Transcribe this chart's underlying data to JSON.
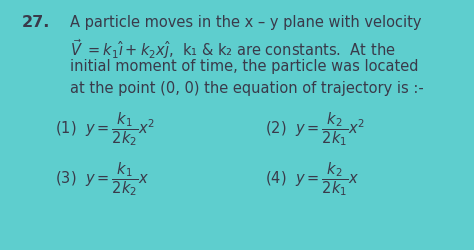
{
  "background_color": "#5ecece",
  "question_number": "27.",
  "line1": "A particle moves in the x – y plane with velocity",
  "line3": "initial moment of time, the particle was located",
  "line4": "at the point (0, 0) the equation of trajectory is :-",
  "text_color": "#3a3a4a",
  "font_size_main": 10.5,
  "font_size_opt": 10.5
}
